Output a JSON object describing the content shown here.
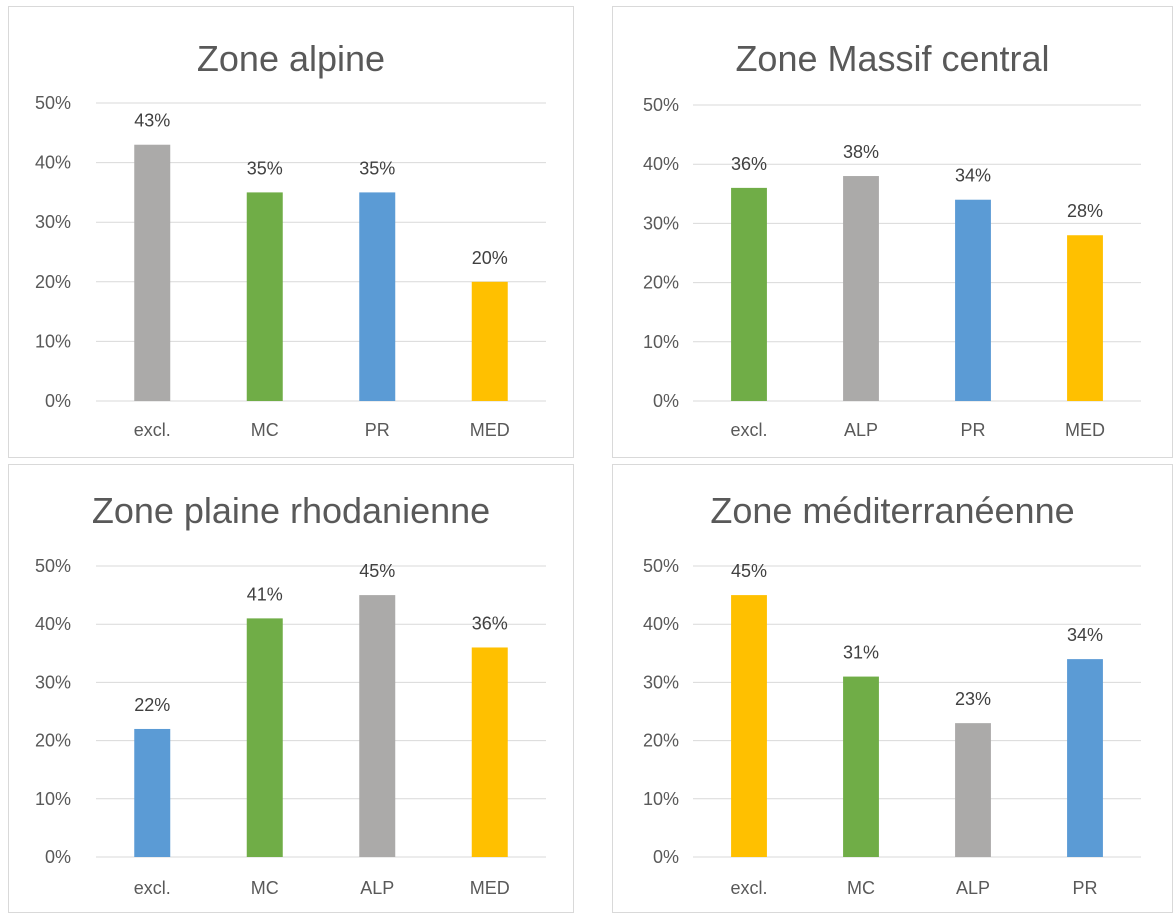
{
  "colors": {
    "excl_alpine": "#a5a5a5",
    "green": "#70ad47",
    "gray": "#a5a5a5",
    "blue": "#5b9bd5",
    "yellow": "#ffc000"
  },
  "chart_data": [
    {
      "type": "bar",
      "title": "Zone alpine",
      "categories": [
        "excl.",
        "MC",
        "PR",
        "MED"
      ],
      "values": [
        43,
        35,
        35,
        20
      ],
      "labels": [
        "43%",
        "35%",
        "35%",
        "20%"
      ],
      "colors": [
        "#abaaa9",
        "#70ad47",
        "#5b9bd5",
        "#ffc000"
      ],
      "yticks": [
        "0%",
        "10%",
        "20%",
        "30%",
        "40%",
        "50%"
      ],
      "ylim": [
        0,
        50
      ],
      "grid": true,
      "legend": "none"
    },
    {
      "type": "bar",
      "title": "Zone Massif central",
      "categories": [
        "excl.",
        "ALP",
        "PR",
        "MED"
      ],
      "values": [
        36,
        38,
        34,
        28
      ],
      "labels": [
        "36%",
        "38%",
        "34%",
        "28%"
      ],
      "colors": [
        "#70ad47",
        "#abaaa9",
        "#5b9bd5",
        "#ffc000"
      ],
      "yticks": [
        "0%",
        "10%",
        "20%",
        "30%",
        "40%",
        "50%"
      ],
      "ylim": [
        0,
        50
      ],
      "grid": true,
      "legend": "none"
    },
    {
      "type": "bar",
      "title": "Zone plaine rhodanienne",
      "categories": [
        "excl.",
        "MC",
        "ALP",
        "MED"
      ],
      "values": [
        22,
        41,
        45,
        36
      ],
      "labels": [
        "22%",
        "41%",
        "45%",
        "36%"
      ],
      "colors": [
        "#5b9bd5",
        "#70ad47",
        "#abaaa9",
        "#ffc000"
      ],
      "yticks": [
        "0%",
        "10%",
        "20%",
        "30%",
        "40%",
        "50%"
      ],
      "ylim": [
        0,
        50
      ],
      "grid": true,
      "legend": "none"
    },
    {
      "type": "bar",
      "title": "Zone méditerranéenne",
      "categories": [
        "excl.",
        "MC",
        "ALP",
        "PR"
      ],
      "values": [
        45,
        31,
        23,
        34
      ],
      "labels": [
        "45%",
        "31%",
        "23%",
        "34%"
      ],
      "colors": [
        "#ffc000",
        "#70ad47",
        "#abaaa9",
        "#5b9bd5"
      ],
      "yticks": [
        "0%",
        "10%",
        "20%",
        "30%",
        "40%",
        "50%"
      ],
      "ylim": [
        0,
        50
      ],
      "grid": true,
      "legend": "none"
    }
  ]
}
